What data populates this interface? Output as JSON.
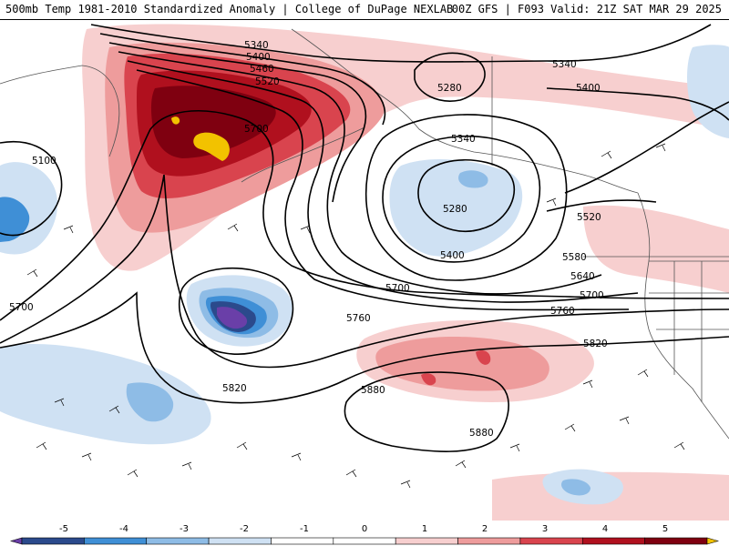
{
  "header": {
    "title_left": "500mb Temp 1981-2010 Standardized Anomaly | College of DuPage NEXLAB",
    "title_right": "00Z GFS | F093 Valid: 21Z SAT MAR 29 2025"
  },
  "colors": {
    "anom_neg5": "#6a3fa8",
    "anom_neg4": "#2b4a8c",
    "anom_neg3": "#3f8fd6",
    "anom_neg2": "#8ebce6",
    "anom_neg1": "#cfe1f3",
    "anom_zero": "#ffffff",
    "anom_pos1": "#f7cfcf",
    "anom_pos2": "#ee9c9c",
    "anom_pos3": "#d9444e",
    "anom_pos4": "#b0101e",
    "anom_pos5": "#7f0010",
    "anom_max": "#f2c200"
  },
  "contour_labels": [
    {
      "id": "c5340a",
      "text": "5340"
    },
    {
      "id": "c5400a",
      "text": "5400"
    },
    {
      "id": "c5460a",
      "text": "5460"
    },
    {
      "id": "c5520a",
      "text": "5520"
    },
    {
      "id": "c5700a",
      "text": "5700"
    },
    {
      "id": "c5100",
      "text": "5100"
    },
    {
      "id": "c5280a",
      "text": "5280"
    },
    {
      "id": "c5340b",
      "text": "5340"
    },
    {
      "id": "c5400b",
      "text": "5400"
    },
    {
      "id": "c5340c",
      "text": "5340"
    },
    {
      "id": "c5280b",
      "text": "5280"
    },
    {
      "id": "c5400c",
      "text": "5400"
    },
    {
      "id": "c5520b",
      "text": "5520"
    },
    {
      "id": "c5580",
      "text": "5580"
    },
    {
      "id": "c5640",
      "text": "5640"
    },
    {
      "id": "c5700b",
      "text": "5700"
    },
    {
      "id": "c5700c",
      "text": "5700"
    },
    {
      "id": "c5700d",
      "text": "5700"
    },
    {
      "id": "c5760a",
      "text": "5760"
    },
    {
      "id": "c5760b",
      "text": "5760"
    },
    {
      "id": "c5820a",
      "text": "5820"
    },
    {
      "id": "c5820b",
      "text": "5820"
    },
    {
      "id": "c5880a",
      "text": "5880"
    },
    {
      "id": "c5880b",
      "text": "5880"
    }
  ],
  "legend": {
    "ticks": [
      "-5",
      "-4",
      "-3",
      "-2",
      "-1",
      "0",
      "1",
      "2",
      "3",
      "4",
      "5"
    ],
    "segment_colors": [
      "#6a3fa8",
      "#2b4a8c",
      "#3f8fd6",
      "#8ebce6",
      "#cfe1f3",
      "#ffffff",
      "#ffffff",
      "#f7cfcf",
      "#ee9c9c",
      "#d9444e",
      "#b0101e",
      "#7f0010",
      "#f2c200"
    ]
  }
}
